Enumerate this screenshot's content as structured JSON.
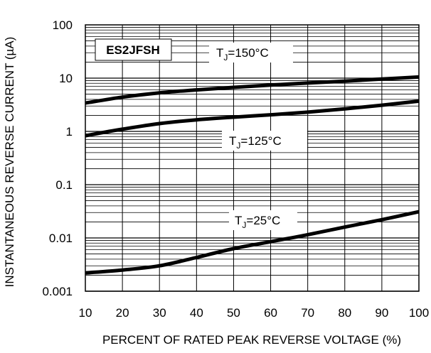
{
  "chart_data": {
    "type": "line",
    "title": "",
    "xlabel": "PERCENT OF RATED PEAK REVERSE VOLTAGE (%)",
    "ylabel": "INSTANTANEOUS REVERSE CURRENT (µA)",
    "xlim": [
      10,
      100
    ],
    "ylim": [
      0.001,
      100
    ],
    "yscale": "log",
    "grid": true,
    "x_ticks": [
      "10",
      "20",
      "30",
      "40",
      "50",
      "60",
      "70",
      "80",
      "90",
      "100"
    ],
    "y_ticks": [
      "0.001",
      "0.01",
      "0.1",
      "1",
      "10",
      "100"
    ],
    "part_label": "ES2JFSH",
    "series": [
      {
        "label_main": "T",
        "label_sub": "J",
        "label_rest": "=150°C",
        "x": [
          10,
          20,
          30,
          40,
          50,
          60,
          70,
          80,
          90,
          100
        ],
        "values": [
          3.4,
          4.4,
          5.3,
          6.0,
          6.7,
          7.4,
          8.1,
          8.8,
          9.6,
          10.5
        ]
      },
      {
        "label_main": "T",
        "label_sub": "J",
        "label_rest": "=125°C",
        "x": [
          10,
          20,
          30,
          40,
          50,
          60,
          70,
          80,
          90,
          100
        ],
        "values": [
          0.83,
          1.1,
          1.4,
          1.65,
          1.85,
          2.05,
          2.3,
          2.65,
          3.1,
          3.7
        ]
      },
      {
        "label_main": "T",
        "label_sub": "J",
        "label_rest": "=25°C",
        "x": [
          10,
          20,
          30,
          40,
          50,
          60,
          70,
          80,
          90,
          100
        ],
        "values": [
          0.0022,
          0.0025,
          0.003,
          0.0043,
          0.0063,
          0.0085,
          0.0115,
          0.016,
          0.022,
          0.031
        ]
      }
    ]
  }
}
